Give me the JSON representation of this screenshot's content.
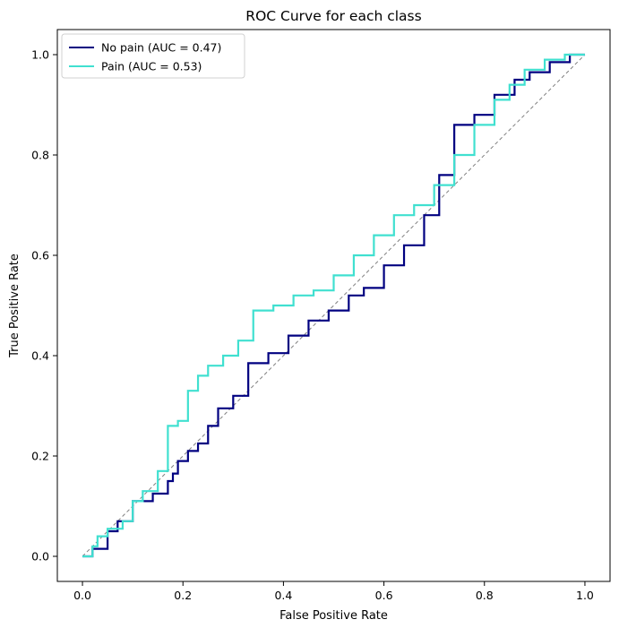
{
  "chart_data": {
    "type": "line",
    "title": "ROC Curve for each class",
    "xlabel": "False Positive Rate",
    "ylabel": "True Positive Rate",
    "xlim": [
      -0.05,
      1.05
    ],
    "ylim": [
      -0.05,
      1.05
    ],
    "xticks": [
      "0.0",
      "0.2",
      "0.4",
      "0.6",
      "0.8",
      "1.0"
    ],
    "yticks": [
      "0.0",
      "0.2",
      "0.4",
      "0.6",
      "0.8",
      "1.0"
    ],
    "grid": false,
    "legend_position": "upper left",
    "reference_line": {
      "x": [
        0,
        1
      ],
      "y": [
        0,
        1
      ],
      "color": "#808080",
      "style": "dashed"
    },
    "series": [
      {
        "name": "No pain (AUC = 0.47)",
        "color": "#000080",
        "x": [
          0.0,
          0.02,
          0.02,
          0.05,
          0.05,
          0.07,
          0.07,
          0.1,
          0.1,
          0.14,
          0.14,
          0.17,
          0.17,
          0.18,
          0.18,
          0.19,
          0.19,
          0.21,
          0.21,
          0.23,
          0.23,
          0.25,
          0.25,
          0.27,
          0.27,
          0.3,
          0.3,
          0.33,
          0.33,
          0.37,
          0.37,
          0.41,
          0.41,
          0.45,
          0.45,
          0.49,
          0.49,
          0.53,
          0.53,
          0.56,
          0.56,
          0.6,
          0.6,
          0.64,
          0.64,
          0.68,
          0.68,
          0.71,
          0.71,
          0.74,
          0.74,
          0.78,
          0.78,
          0.82,
          0.82,
          0.86,
          0.86,
          0.89,
          0.89,
          0.93,
          0.93,
          0.97,
          0.97,
          1.0
        ],
        "y": [
          0.0,
          0.0,
          0.015,
          0.015,
          0.05,
          0.05,
          0.07,
          0.07,
          0.11,
          0.11,
          0.125,
          0.125,
          0.15,
          0.15,
          0.165,
          0.165,
          0.19,
          0.19,
          0.21,
          0.21,
          0.225,
          0.225,
          0.26,
          0.26,
          0.295,
          0.295,
          0.32,
          0.32,
          0.385,
          0.385,
          0.405,
          0.405,
          0.44,
          0.44,
          0.47,
          0.47,
          0.49,
          0.49,
          0.52,
          0.52,
          0.535,
          0.535,
          0.58,
          0.58,
          0.62,
          0.62,
          0.68,
          0.68,
          0.76,
          0.76,
          0.86,
          0.86,
          0.88,
          0.88,
          0.92,
          0.92,
          0.95,
          0.95,
          0.965,
          0.965,
          0.985,
          0.985,
          1.0,
          1.0
        ]
      },
      {
        "name": "Pain (AUC = 0.53)",
        "color": "#40E0D0",
        "x": [
          0.0,
          0.02,
          0.02,
          0.03,
          0.03,
          0.05,
          0.05,
          0.08,
          0.08,
          0.1,
          0.1,
          0.12,
          0.12,
          0.15,
          0.15,
          0.17,
          0.17,
          0.19,
          0.19,
          0.21,
          0.21,
          0.23,
          0.23,
          0.25,
          0.25,
          0.28,
          0.28,
          0.31,
          0.31,
          0.34,
          0.34,
          0.38,
          0.38,
          0.42,
          0.42,
          0.46,
          0.46,
          0.5,
          0.5,
          0.54,
          0.54,
          0.58,
          0.58,
          0.62,
          0.62,
          0.66,
          0.66,
          0.7,
          0.7,
          0.74,
          0.74,
          0.78,
          0.78,
          0.82,
          0.82,
          0.85,
          0.85,
          0.88,
          0.88,
          0.92,
          0.92,
          0.96,
          0.96,
          1.0
        ],
        "y": [
          0.0,
          0.0,
          0.02,
          0.02,
          0.04,
          0.04,
          0.055,
          0.055,
          0.07,
          0.07,
          0.11,
          0.11,
          0.13,
          0.13,
          0.17,
          0.17,
          0.26,
          0.26,
          0.27,
          0.27,
          0.33,
          0.33,
          0.36,
          0.36,
          0.38,
          0.38,
          0.4,
          0.4,
          0.43,
          0.43,
          0.49,
          0.49,
          0.5,
          0.5,
          0.52,
          0.52,
          0.53,
          0.53,
          0.56,
          0.56,
          0.6,
          0.6,
          0.64,
          0.64,
          0.68,
          0.68,
          0.7,
          0.7,
          0.74,
          0.74,
          0.8,
          0.8,
          0.86,
          0.86,
          0.91,
          0.91,
          0.94,
          0.94,
          0.97,
          0.97,
          0.99,
          0.99,
          1.0,
          1.0
        ]
      }
    ]
  }
}
